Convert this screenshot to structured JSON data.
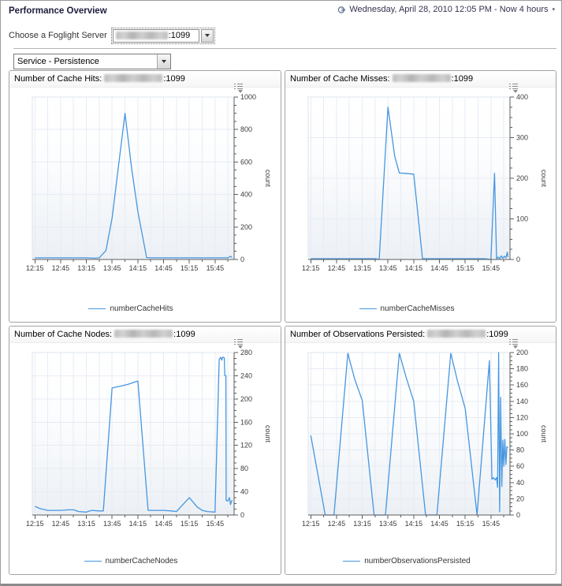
{
  "header": {
    "title": "Performance Overview",
    "timerange": "Wednesday, April 28, 2010 12:05 PM - Now 4 hours"
  },
  "server_picker": {
    "label": "Choose a Foglight Server",
    "value_suffix": ":1099",
    "redacted": true
  },
  "service_picker": {
    "value": "Service - Persistence"
  },
  "colors": {
    "line": "#4696e0",
    "grid": "#e7ecf4",
    "plot_border": "#dde4ec",
    "axis": "#5c5c5c",
    "tick_text": "#3c3c3c"
  },
  "chart_data": [
    {
      "type": "line",
      "name": "cache-hits",
      "title_prefix": "Number of Cache Hits:",
      "title_suffix": ":1099",
      "legend": "numberCacheHits",
      "ylabel": "count",
      "ylim": [
        0,
        1000
      ],
      "y_ticks": [
        0,
        200,
        400,
        600,
        800,
        1000
      ],
      "y_minor_step": 50,
      "x_ticklabels": [
        "12:15",
        "12:45",
        "13:15",
        "13:45",
        "14:15",
        "14:45",
        "15:15",
        "15:45"
      ],
      "xlim_hours": [
        12.2,
        16.12
      ],
      "grid": true,
      "legend_position": "bottom",
      "points": [
        [
          12.25,
          10
        ],
        [
          12.5,
          10
        ],
        [
          12.75,
          10
        ],
        [
          13.0,
          10
        ],
        [
          13.25,
          10
        ],
        [
          13.42,
          8
        ],
        [
          13.5,
          10
        ],
        [
          13.63,
          55
        ],
        [
          13.75,
          255
        ],
        [
          14.0,
          900
        ],
        [
          14.13,
          560
        ],
        [
          14.25,
          295
        ],
        [
          14.42,
          12
        ],
        [
          14.5,
          10
        ],
        [
          14.75,
          10
        ],
        [
          15.0,
          10
        ],
        [
          15.25,
          10
        ],
        [
          15.5,
          10
        ],
        [
          15.75,
          10
        ],
        [
          16.0,
          10
        ],
        [
          16.05,
          20
        ],
        [
          16.08,
          12
        ]
      ]
    },
    {
      "type": "line",
      "name": "cache-misses",
      "title_prefix": "Number of Cache Misses:",
      "title_suffix": ":1099",
      "legend": "numberCacheMisses",
      "ylabel": "count",
      "ylim": [
        0,
        400
      ],
      "y_ticks": [
        0,
        100,
        200,
        300,
        400
      ],
      "y_minor_step": 25,
      "x_ticklabels": [
        "12:15",
        "12:45",
        "13:15",
        "13:45",
        "14:15",
        "14:45",
        "15:15",
        "15:45"
      ],
      "xlim_hours": [
        12.2,
        16.12
      ],
      "grid": true,
      "legend_position": "bottom",
      "points": [
        [
          12.25,
          2
        ],
        [
          12.5,
          2
        ],
        [
          12.75,
          2
        ],
        [
          13.0,
          2
        ],
        [
          13.25,
          2
        ],
        [
          13.5,
          2
        ],
        [
          13.58,
          0
        ],
        [
          13.75,
          375
        ],
        [
          13.88,
          255
        ],
        [
          13.97,
          213
        ],
        [
          14.08,
          212
        ],
        [
          14.25,
          210
        ],
        [
          14.42,
          2
        ],
        [
          14.5,
          2
        ],
        [
          14.75,
          2
        ],
        [
          15.0,
          2
        ],
        [
          15.25,
          2
        ],
        [
          15.5,
          2
        ],
        [
          15.63,
          2
        ],
        [
          15.75,
          0
        ],
        [
          15.82,
          212
        ],
        [
          15.86,
          2
        ],
        [
          15.89,
          6
        ],
        [
          15.92,
          2
        ],
        [
          15.95,
          9
        ],
        [
          15.98,
          3
        ],
        [
          16.01,
          8
        ],
        [
          16.04,
          4
        ],
        [
          16.07,
          18
        ],
        [
          16.08,
          6
        ]
      ]
    },
    {
      "type": "line",
      "name": "cache-nodes",
      "title_prefix": "Number of Cache Nodes:",
      "title_suffix": ":1099",
      "legend": "numberCacheNodes",
      "ylabel": "count",
      "ylim": [
        0,
        280
      ],
      "y_ticks": [
        0,
        40,
        80,
        120,
        160,
        200,
        240,
        280
      ],
      "y_minor_step": 10,
      "x_ticklabels": [
        "12:15",
        "12:45",
        "13:15",
        "13:45",
        "14:15",
        "14:45",
        "15:15",
        "15:45"
      ],
      "xlim_hours": [
        12.2,
        16.12
      ],
      "grid": true,
      "legend_position": "bottom",
      "points": [
        [
          12.25,
          15
        ],
        [
          12.35,
          11
        ],
        [
          12.5,
          8
        ],
        [
          12.75,
          8
        ],
        [
          12.9,
          9
        ],
        [
          13.0,
          9
        ],
        [
          13.1,
          6
        ],
        [
          13.25,
          5
        ],
        [
          13.35,
          8
        ],
        [
          13.5,
          7
        ],
        [
          13.58,
          7
        ],
        [
          13.75,
          219
        ],
        [
          13.9,
          222
        ],
        [
          14.05,
          225
        ],
        [
          14.25,
          231
        ],
        [
          14.45,
          8
        ],
        [
          14.5,
          8
        ],
        [
          14.75,
          8
        ],
        [
          14.9,
          7
        ],
        [
          15.0,
          6
        ],
        [
          15.25,
          30
        ],
        [
          15.4,
          14
        ],
        [
          15.5,
          8
        ],
        [
          15.6,
          6
        ],
        [
          15.75,
          5
        ],
        [
          15.83,
          268
        ],
        [
          15.86,
          272
        ],
        [
          15.88,
          267
        ],
        [
          15.9,
          272
        ],
        [
          15.93,
          271
        ],
        [
          15.94,
          240
        ],
        [
          15.96,
          240
        ],
        [
          15.965,
          25
        ],
        [
          16.0,
          24
        ],
        [
          16.03,
          30
        ],
        [
          16.05,
          18
        ],
        [
          16.08,
          26
        ]
      ]
    },
    {
      "type": "line",
      "name": "observations-persisted",
      "title_prefix": "Number of Observations Persisted:",
      "title_suffix": ":1099",
      "legend": "numberObservationsPersisted",
      "ylabel": "count",
      "ylim": [
        0,
        200
      ],
      "y_ticks": [
        0,
        20,
        40,
        60,
        80,
        100,
        120,
        140,
        160,
        180,
        200
      ],
      "y_minor_step": 5,
      "x_ticklabels": [
        "12:15",
        "12:45",
        "13:15",
        "13:45",
        "14:15",
        "14:45",
        "15:15",
        "15:45"
      ],
      "xlim_hours": [
        12.2,
        16.12
      ],
      "grid": true,
      "legend_position": "bottom",
      "points": [
        [
          12.25,
          98
        ],
        [
          12.53,
          0
        ],
        [
          12.7,
          0
        ],
        [
          12.97,
          199
        ],
        [
          13.1,
          168
        ],
        [
          13.25,
          141
        ],
        [
          13.48,
          0
        ],
        [
          13.7,
          0
        ],
        [
          13.97,
          199
        ],
        [
          14.1,
          170
        ],
        [
          14.25,
          140
        ],
        [
          14.48,
          0
        ],
        [
          14.7,
          0
        ],
        [
          14.97,
          199
        ],
        [
          15.1,
          165
        ],
        [
          15.25,
          131
        ],
        [
          15.48,
          0
        ],
        [
          15.72,
          190
        ],
        [
          15.77,
          44
        ],
        [
          15.8,
          46
        ],
        [
          15.83,
          43
        ],
        [
          15.86,
          46
        ],
        [
          15.88,
          34
        ],
        [
          15.9,
          200
        ],
        [
          15.92,
          4
        ],
        [
          15.94,
          145
        ],
        [
          15.96,
          35
        ],
        [
          15.98,
          92
        ],
        [
          16.0,
          60
        ],
        [
          16.02,
          93
        ],
        [
          16.04,
          62
        ],
        [
          16.06,
          84
        ],
        [
          16.08,
          83
        ]
      ]
    }
  ]
}
